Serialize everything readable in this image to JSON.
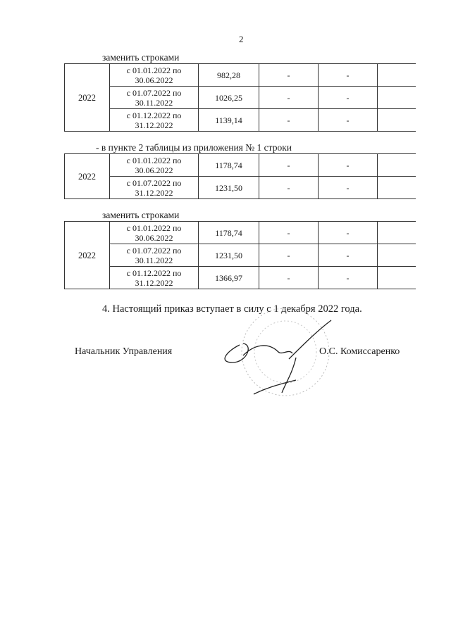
{
  "page_number": "2",
  "blocks": [
    {
      "intro": "заменить строками",
      "year": "2022",
      "rows": [
        {
          "period_line1": "с 01.01.2022 по",
          "period_line2": "30.06.2022",
          "value": "982,28",
          "col4": "-",
          "col5": "-",
          "col6": ""
        },
        {
          "period_line1": "с 01.07.2022 по",
          "period_line2": "30.11.2022",
          "value": "1026,25",
          "col4": "-",
          "col5": "-",
          "col6": ""
        },
        {
          "period_line1": "с 01.12.2022 по",
          "period_line2": "31.12.2022",
          "value": "1139,14",
          "col4": "-",
          "col5": "-",
          "col6": ""
        }
      ]
    },
    {
      "intro": "- в пункте 2 таблицы из приложения № 1 строки",
      "year": "2022",
      "rows": [
        {
          "period_line1": "с 01.01.2022 по",
          "period_line2": "30.06.2022",
          "value": "1178,74",
          "col4": "-",
          "col5": "-",
          "col6": ""
        },
        {
          "period_line1": "с 01.07.2022 по",
          "period_line2": "31.12.2022",
          "value": "1231,50",
          "col4": "-",
          "col5": "-",
          "col6": ""
        }
      ]
    },
    {
      "intro": "заменить строками",
      "year": "2022",
      "rows": [
        {
          "period_line1": "с 01.01.2022 по",
          "period_line2": "30.06.2022",
          "value": "1178,74",
          "col4": "-",
          "col5": "-",
          "col6": ""
        },
        {
          "period_line1": "с 01.07.2022 по",
          "period_line2": "30.11.2022",
          "value": "1231,50",
          "col4": "-",
          "col5": "-",
          "col6": ""
        },
        {
          "period_line1": "с 01.12.2022 по",
          "period_line2": "31.12.2022",
          "value": "1366,97",
          "col4": "-",
          "col5": "-",
          "col6": ""
        }
      ]
    }
  ],
  "paragraph": "4. Настоящий приказ вступает в силу с 1 декабря 2022 года.",
  "signature": {
    "position": "Начальник Управления",
    "name": "О.С. Комиссаренко"
  }
}
